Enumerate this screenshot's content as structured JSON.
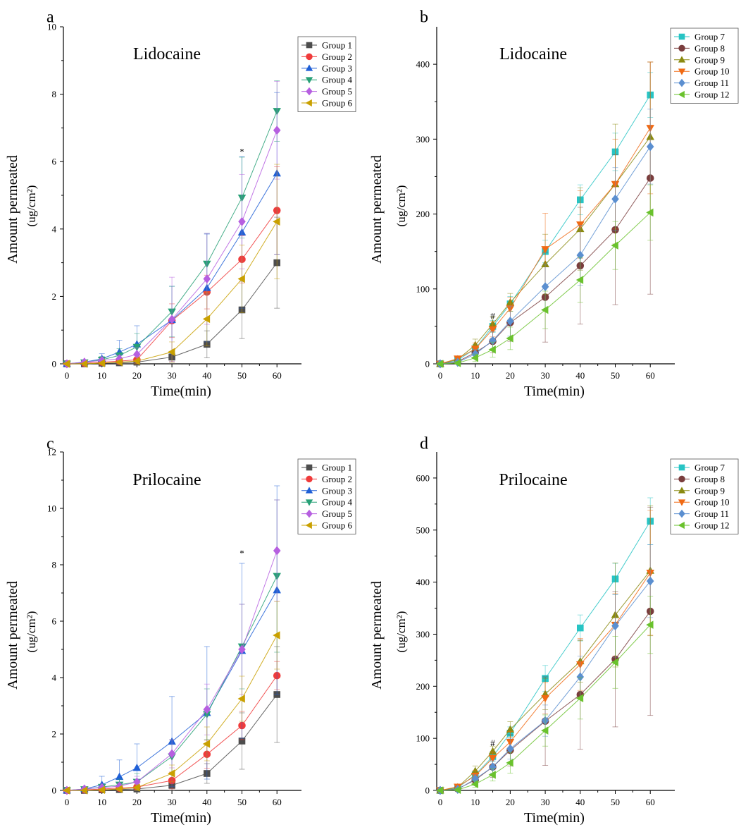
{
  "chart_data": [
    {
      "panel": "a",
      "type": "line",
      "title": "Lidocaine",
      "xlabel": "Time(min)",
      "ylabel_line1": "Amount permeated",
      "ylabel_line2": "(ug/cm²)",
      "x": [
        0,
        5,
        10,
        15,
        20,
        30,
        40,
        50,
        60
      ],
      "xlim": [
        -1,
        67
      ],
      "ylim": [
        0,
        10
      ],
      "xticks": [
        0,
        10,
        20,
        30,
        40,
        50,
        60
      ],
      "yticks": [
        0,
        2,
        4,
        6,
        8,
        10
      ],
      "annotation": {
        "text": "*",
        "x": 50,
        "y": 6.2
      },
      "series": [
        {
          "name": "Group 1",
          "color": "#4d4d4d",
          "marker": "square",
          "values": [
            0,
            0,
            0.02,
            0.03,
            0.05,
            0.2,
            0.58,
            1.6,
            3.0
          ],
          "err": [
            0,
            0.02,
            0.05,
            0.05,
            0.08,
            0.15,
            0.4,
            0.85,
            1.35
          ]
        },
        {
          "name": "Group 2",
          "color": "#f03b3b",
          "marker": "circle",
          "values": [
            0,
            0.02,
            0.05,
            0.08,
            0.12,
            1.28,
            2.13,
            3.1,
            4.55
          ],
          "err": [
            0,
            0.03,
            0.05,
            0.08,
            0.15,
            0.5,
            0.5,
            0.7,
            1.3
          ]
        },
        {
          "name": "Group 3",
          "color": "#1f5fd6",
          "marker": "triangle-up",
          "values": [
            0,
            0.05,
            0.15,
            0.35,
            0.58,
            1.3,
            2.25,
            3.9,
            5.65
          ],
          "err": [
            0,
            0.05,
            0.15,
            0.35,
            0.55,
            1.0,
            1.6,
            2.25,
            2.4
          ]
        },
        {
          "name": "Group 4",
          "color": "#27a076",
          "marker": "triangle-down",
          "values": [
            0,
            0.04,
            0.12,
            0.25,
            0.5,
            1.55,
            2.97,
            4.93,
            7.5
          ],
          "err": [
            0,
            0.04,
            0.1,
            0.2,
            0.4,
            0.75,
            0.9,
            1.2,
            0.9
          ]
        },
        {
          "name": "Group 5",
          "color": "#b65fe0",
          "marker": "diamond",
          "values": [
            0,
            0.05,
            0.1,
            0.15,
            0.28,
            1.32,
            2.52,
            4.22,
            6.93
          ],
          "err": [
            0,
            0.04,
            0.06,
            0.1,
            0.2,
            1.25,
            1.35,
            1.4,
            1.45
          ]
        },
        {
          "name": "Group 6",
          "color": "#c9a000",
          "marker": "triangle-left",
          "values": [
            0,
            0,
            0.02,
            0.05,
            0.08,
            0.35,
            1.33,
            2.52,
            4.22
          ],
          "err": [
            0,
            0.02,
            0.03,
            0.05,
            0.1,
            0.3,
            0.8,
            1.0,
            1.7
          ]
        }
      ]
    },
    {
      "panel": "b",
      "type": "line",
      "title": "Lidocaine",
      "xlabel": "Time(min)",
      "ylabel_line1": "Amount permeated",
      "ylabel_line2": "(ug/cm²)",
      "x": [
        0,
        5,
        10,
        15,
        20,
        30,
        40,
        50,
        60
      ],
      "xlim": [
        -1,
        67
      ],
      "ylim": [
        0,
        450
      ],
      "xticks": [
        0,
        10,
        20,
        30,
        40,
        50,
        60
      ],
      "yticks": [
        0,
        100,
        200,
        300,
        400
      ],
      "annotation": {
        "text": "#",
        "x": 15,
        "y": 60
      },
      "series": [
        {
          "name": "Group 7",
          "color": "#27c4c4",
          "marker": "square",
          "values": [
            0,
            5,
            20,
            50,
            80,
            150,
            219,
            283,
            359
          ],
          "err": [
            0,
            3,
            6,
            8,
            10,
            15,
            20,
            25,
            30
          ]
        },
        {
          "name": "Group 8",
          "color": "#7a3d3d",
          "marker": "circle",
          "values": [
            0,
            3,
            15,
            30,
            55,
            89,
            131,
            179,
            248
          ],
          "err": [
            0,
            2,
            8,
            15,
            25,
            60,
            78,
            100,
            155
          ]
        },
        {
          "name": "Group 9",
          "color": "#8a8a10",
          "marker": "triangle-up",
          "values": [
            0,
            6,
            25,
            53,
            82,
            133,
            180,
            240,
            303
          ],
          "err": [
            0,
            4,
            8,
            10,
            12,
            40,
            55,
            80,
            100
          ]
        },
        {
          "name": "Group 10",
          "color": "#f06a14",
          "marker": "triangle-down",
          "values": [
            0,
            7,
            20,
            46,
            74,
            153,
            186,
            240,
            315
          ],
          "err": [
            0,
            3,
            8,
            10,
            15,
            48,
            45,
            60,
            88
          ]
        },
        {
          "name": "Group 11",
          "color": "#5b8fd0",
          "marker": "diamond",
          "values": [
            0,
            2,
            13,
            31,
            57,
            103,
            145,
            220,
            290
          ],
          "err": [
            0,
            2,
            6,
            12,
            20,
            30,
            40,
            42,
            50
          ]
        },
        {
          "name": "Group 12",
          "color": "#6ac22d",
          "marker": "triangle-left",
          "values": [
            0,
            1,
            8,
            19,
            34,
            72,
            112,
            158,
            202
          ],
          "err": [
            0,
            2,
            5,
            10,
            15,
            25,
            30,
            32,
            37
          ]
        }
      ]
    },
    {
      "panel": "c",
      "type": "line",
      "title": "Prilocaine",
      "xlabel": "Time(min)",
      "ylabel_line1": "Amount permeated",
      "ylabel_line2": "(ug/cm²)",
      "x": [
        0,
        5,
        10,
        15,
        20,
        30,
        40,
        50,
        60
      ],
      "xlim": [
        -1,
        67
      ],
      "ylim": [
        0,
        12
      ],
      "xticks": [
        0,
        10,
        20,
        30,
        40,
        50,
        60
      ],
      "yticks": [
        0,
        2,
        4,
        6,
        8,
        10,
        12
      ],
      "annotation": {
        "text": "*",
        "x": 50,
        "y": 8.3
      },
      "series": [
        {
          "name": "Group 1",
          "color": "#4d4d4d",
          "marker": "square",
          "values": [
            0,
            0,
            0.02,
            0.03,
            0.05,
            0.18,
            0.6,
            1.75,
            3.4
          ],
          "err": [
            0,
            0.02,
            0.03,
            0.05,
            0.08,
            0.2,
            0.35,
            1.0,
            1.7
          ]
        },
        {
          "name": "Group 2",
          "color": "#f03b3b",
          "marker": "circle",
          "values": [
            0,
            0.02,
            0.05,
            0.08,
            0.12,
            0.35,
            1.28,
            2.3,
            4.07
          ],
          "err": [
            0,
            0.02,
            0.05,
            0.08,
            0.15,
            0.3,
            0.5,
            0.5,
            0.5
          ]
        },
        {
          "name": "Group 3",
          "color": "#1f5fd6",
          "marker": "triangle-up",
          "values": [
            0,
            0.05,
            0.2,
            0.48,
            0.8,
            1.73,
            2.75,
            4.95,
            7.1
          ],
          "err": [
            0,
            0.05,
            0.3,
            0.6,
            0.85,
            1.6,
            2.35,
            3.1,
            3.7
          ]
        },
        {
          "name": "Group 4",
          "color": "#27a076",
          "marker": "triangle-down",
          "values": [
            0,
            0.04,
            0.12,
            0.2,
            0.3,
            1.2,
            2.7,
            5.1,
            7.6
          ],
          "err": [
            0,
            0.04,
            0.1,
            0.2,
            0.3,
            0.6,
            0.9,
            1.5,
            2.7
          ]
        },
        {
          "name": "Group 5",
          "color": "#b65fe0",
          "marker": "diamond",
          "values": [
            0,
            0.05,
            0.1,
            0.15,
            0.3,
            1.3,
            2.87,
            5.0,
            8.5
          ],
          "err": [
            0,
            0.04,
            0.08,
            0.1,
            0.2,
            0.5,
            0.9,
            1.6,
            1.8
          ]
        },
        {
          "name": "Group 6",
          "color": "#c9a000",
          "marker": "triangle-left",
          "values": [
            0,
            0,
            0.02,
            0.05,
            0.1,
            0.6,
            1.65,
            3.25,
            5.5
          ],
          "err": [
            0,
            0.02,
            0.03,
            0.05,
            0.1,
            0.3,
            0.6,
            0.8,
            1.2
          ]
        }
      ]
    },
    {
      "panel": "d",
      "type": "line",
      "title": "Prilocaine",
      "xlabel": "Time(min)",
      "ylabel_line1": "Amount permeated",
      "ylabel_line2": "(ug/cm²)",
      "x": [
        0,
        5,
        10,
        15,
        20,
        30,
        40,
        50,
        60
      ],
      "xlim": [
        -1,
        67
      ],
      "ylim": [
        0,
        650
      ],
      "xticks": [
        0,
        10,
        20,
        30,
        40,
        50,
        60
      ],
      "yticks": [
        0,
        100,
        200,
        300,
        400,
        500,
        600
      ],
      "annotation": {
        "text": "#",
        "x": 15,
        "y": 85
      },
      "series": [
        {
          "name": "Group 7",
          "color": "#27c4c4",
          "marker": "square",
          "values": [
            0,
            5,
            30,
            65,
            110,
            215,
            312,
            406,
            517
          ],
          "err": [
            0,
            3,
            8,
            10,
            12,
            25,
            25,
            30,
            45
          ]
        },
        {
          "name": "Group 8",
          "color": "#7a3d3d",
          "marker": "circle",
          "values": [
            0,
            3,
            20,
            45,
            77,
            133,
            184,
            252,
            344
          ],
          "err": [
            0,
            2,
            10,
            20,
            30,
            85,
            105,
            130,
            200
          ]
        },
        {
          "name": "Group 9",
          "color": "#8a8a10",
          "marker": "triangle-up",
          "values": [
            0,
            6,
            37,
            75,
            117,
            185,
            248,
            337,
            422
          ],
          "err": [
            0,
            4,
            10,
            10,
            15,
            30,
            40,
            100,
            125
          ]
        },
        {
          "name": "Group 10",
          "color": "#f06a14",
          "marker": "triangle-down",
          "values": [
            0,
            7,
            28,
            62,
            93,
            177,
            242,
            318,
            418
          ],
          "err": [
            0,
            3,
            10,
            12,
            20,
            30,
            50,
            60,
            120
          ]
        },
        {
          "name": "Group 11",
          "color": "#5b8fd0",
          "marker": "diamond",
          "values": [
            0,
            2,
            22,
            45,
            80,
            134,
            218,
            316,
            402
          ],
          "err": [
            0,
            2,
            8,
            12,
            20,
            30,
            40,
            60,
            70
          ]
        },
        {
          "name": "Group 12",
          "color": "#6ac22d",
          "marker": "triangle-left",
          "values": [
            0,
            1,
            12,
            30,
            53,
            115,
            177,
            246,
            318
          ],
          "err": [
            0,
            2,
            6,
            12,
            20,
            30,
            40,
            50,
            55
          ]
        }
      ]
    }
  ]
}
